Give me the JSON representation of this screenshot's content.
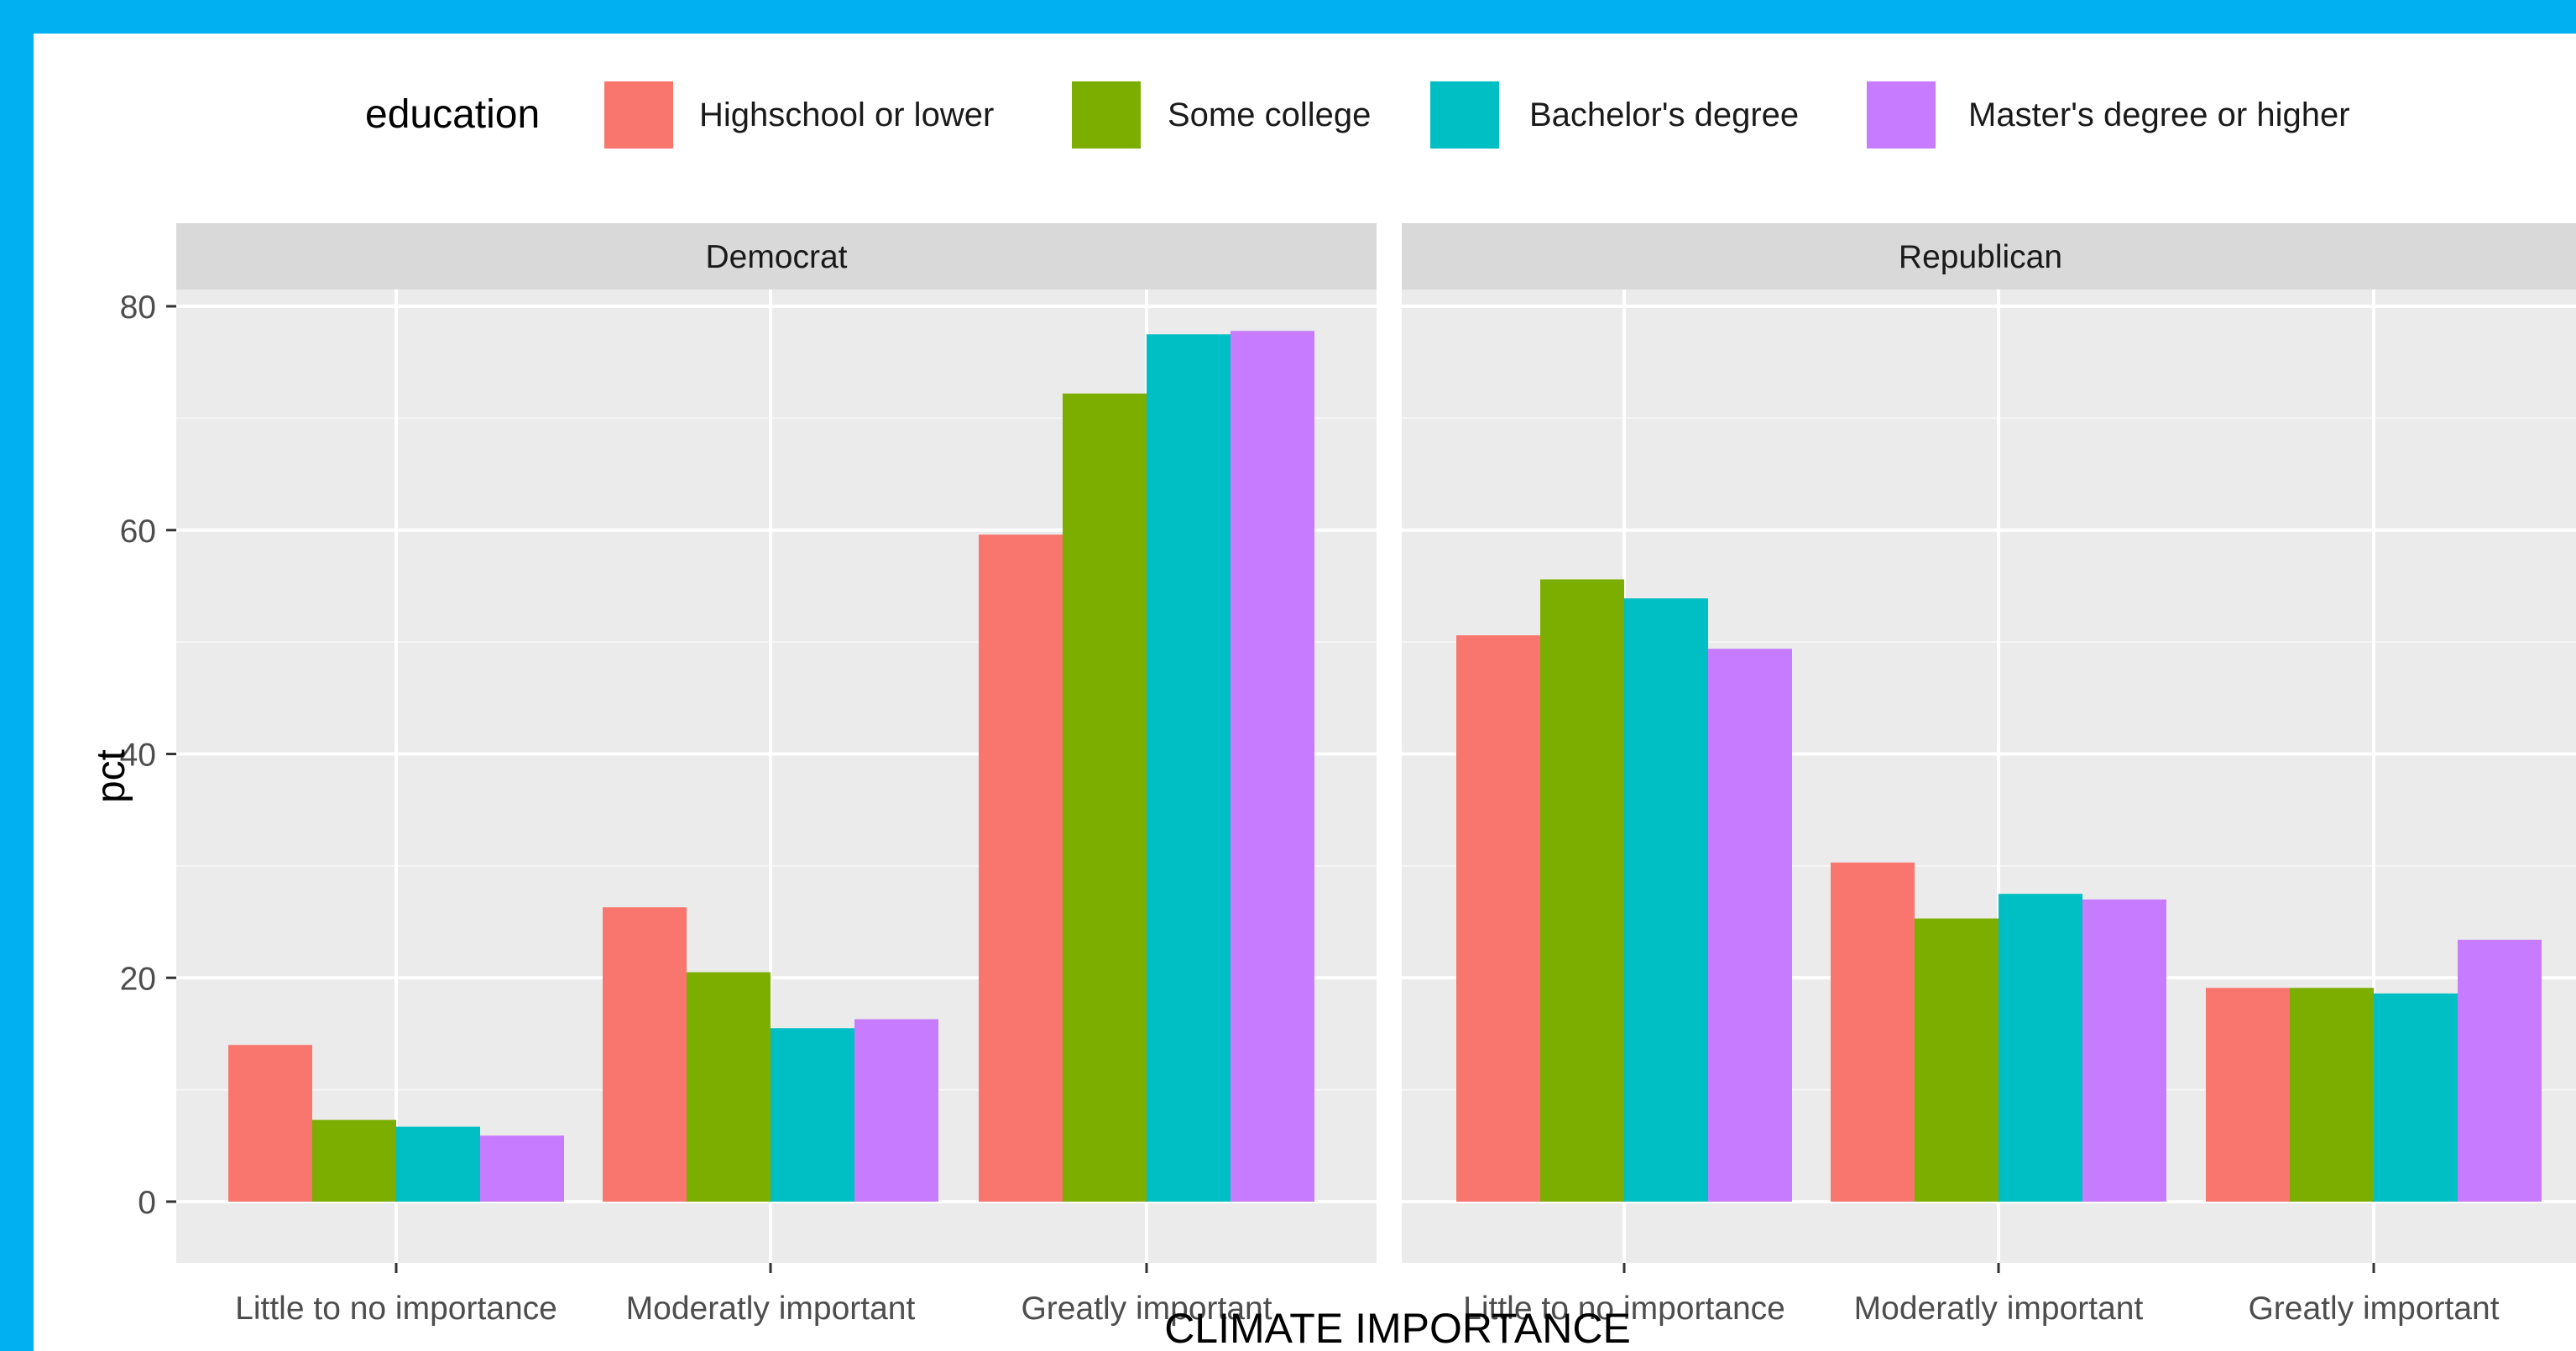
{
  "chart_data": {
    "type": "bar",
    "title": "",
    "xlabel": "CLIMATE  IMPORTANCE",
    "ylabel": "pct",
    "ylim": [
      0,
      80
    ],
    "yticks": [
      0,
      20,
      40,
      60,
      80
    ],
    "grid": true,
    "legend": {
      "title": "education",
      "position": "top"
    },
    "categories": [
      "Little to no importance",
      "Moderatly important",
      "Greatly important"
    ],
    "series": [
      {
        "name": "Highschool or lower",
        "color": "#f8766d"
      },
      {
        "name": "Some college",
        "color": "#7cae00"
      },
      {
        "name": "Bachelor's degree",
        "color": "#00bfc4"
      },
      {
        "name": "Master's degree or higher",
        "color": "#c77cff"
      }
    ],
    "facets": [
      {
        "label": "Democrat",
        "values": [
          [
            14.0,
            26.3,
            59.6
          ],
          [
            7.3,
            20.5,
            72.2
          ],
          [
            6.7,
            15.5,
            77.5
          ],
          [
            5.9,
            16.3,
            77.8
          ]
        ]
      },
      {
        "label": "Republican",
        "values": [
          [
            50.6,
            30.3,
            19.1
          ],
          [
            55.6,
            25.3,
            19.1
          ],
          [
            53.9,
            27.5,
            18.6
          ],
          [
            49.4,
            27.0,
            23.4
          ]
        ]
      }
    ]
  }
}
